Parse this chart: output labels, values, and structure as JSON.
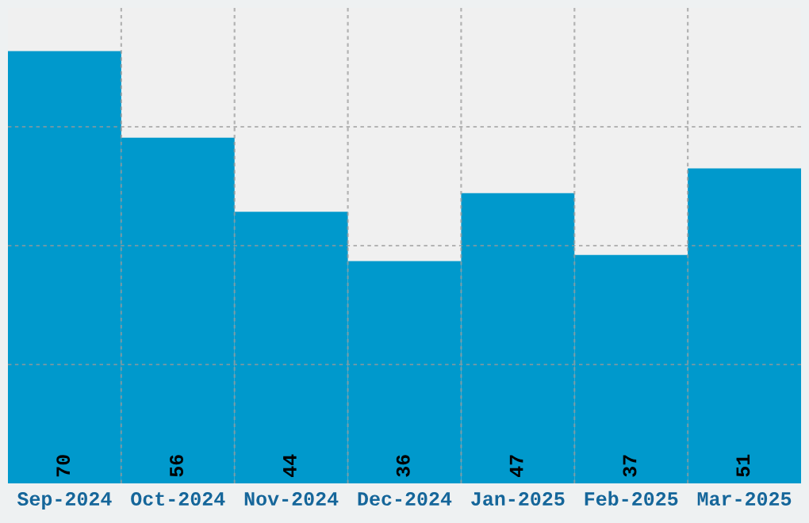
{
  "chart_data": {
    "type": "bar",
    "categories": [
      "Sep-2024",
      "Oct-2024",
      "Nov-2024",
      "Dec-2024",
      "Jan-2025",
      "Feb-2025",
      "Mar-2025"
    ],
    "values": [
      70,
      56,
      44,
      36,
      47,
      37,
      51
    ],
    "color": "#0099cc",
    "ylim": [
      0,
      77
    ],
    "yticks": [
      {
        "value": 19.25,
        "label": null
      },
      {
        "value": 38.5,
        "label": null
      },
      {
        "value": 57.75,
        "label": null
      }
    ],
    "tick_labels": "x",
    "data_labels": true,
    "grid": true
  }
}
